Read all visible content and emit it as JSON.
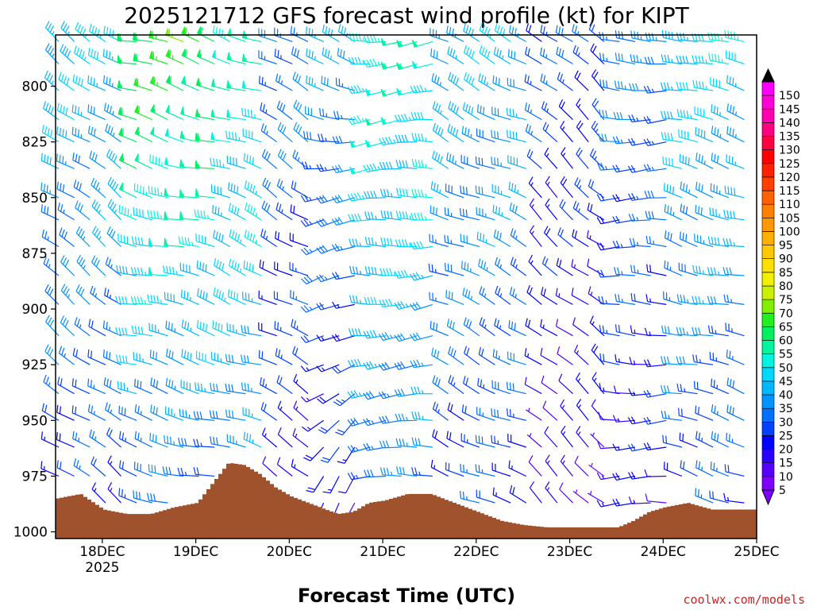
{
  "chart_data": {
    "type": "wind-barb",
    "title": "2025121712 GFS forecast wind profile (kt) for KIPT",
    "xlabel": "Forecast Time (UTC)",
    "credit": "coolwx.com/models",
    "y_axis": {
      "unit": "hPa",
      "min": 777,
      "max": 1003,
      "ticks": [
        {
          "value": 800,
          "label": "800"
        },
        {
          "value": 825,
          "label": "825"
        },
        {
          "value": 850,
          "label": "850"
        },
        {
          "value": 875,
          "label": "875"
        },
        {
          "value": 900,
          "label": "900"
        },
        {
          "value": 925,
          "label": "925"
        },
        {
          "value": 950,
          "label": "950"
        },
        {
          "value": 975,
          "label": "975"
        },
        {
          "value": 1000,
          "label": "1000"
        }
      ]
    },
    "x_axis": {
      "unit": "hours after 2025-12-17 12Z",
      "min": 0,
      "max": 180,
      "ticks": [
        {
          "hour": 12,
          "label": "18DEC",
          "sublabel": "2025"
        },
        {
          "hour": 36,
          "label": "19DEC",
          "sublabel": ""
        },
        {
          "hour": 60,
          "label": "20DEC",
          "sublabel": ""
        },
        {
          "hour": 84,
          "label": "21DEC",
          "sublabel": ""
        },
        {
          "hour": 108,
          "label": "22DEC",
          "sublabel": ""
        },
        {
          "hour": 132,
          "label": "23DEC",
          "sublabel": ""
        },
        {
          "hour": 156,
          "label": "24DEC",
          "sublabel": ""
        },
        {
          "hour": 180,
          "label": "25DEC",
          "sublabel": ""
        }
      ]
    },
    "barb_levels_hpa": [
      780,
      790,
      802,
      815,
      825,
      837,
      850,
      860,
      872,
      885,
      898,
      912,
      925,
      938,
      950,
      962,
      975,
      987
    ],
    "barb_interval_hours": 4,
    "surface_pressure": {
      "hours": [
        0,
        6,
        12,
        18,
        24,
        30,
        36,
        40,
        44,
        48,
        52,
        56,
        60,
        66,
        72,
        76,
        80,
        84,
        90,
        96,
        102,
        108,
        114,
        120,
        126,
        132,
        138,
        144,
        148,
        152,
        156,
        162,
        168,
        174,
        180
      ],
      "hpa": [
        985,
        983,
        990,
        992,
        992,
        989,
        987,
        978,
        969,
        970,
        974,
        980,
        984,
        988,
        992,
        991,
        987,
        986,
        983,
        983,
        987,
        991,
        995,
        997,
        998,
        998,
        998,
        998,
        995,
        991,
        989,
        987,
        990,
        990,
        990
      ]
    },
    "colorbar": {
      "levels": [
        5,
        10,
        15,
        20,
        25,
        30,
        35,
        40,
        45,
        50,
        55,
        60,
        65,
        70,
        75,
        80,
        85,
        90,
        95,
        100,
        105,
        110,
        115,
        120,
        125,
        130,
        135,
        140,
        145,
        150
      ],
      "colors": [
        "#7f00ff",
        "#5500ff",
        "#2a00ff",
        "#0000ff",
        "#0040ff",
        "#0070ff",
        "#0095ff",
        "#00b8ff",
        "#00d8ff",
        "#00f5e0",
        "#00f5a0",
        "#00f060",
        "#20f020",
        "#80f000",
        "#c8f000",
        "#f0f000",
        "#ffe000",
        "#ffc800",
        "#ffb000",
        "#ff9800",
        "#ff8000",
        "#ff6000",
        "#ff4000",
        "#ff2000",
        "#ff0000",
        "#ff0040",
        "#ff0080",
        "#ff00b0",
        "#ff00d8",
        "#ff00ff"
      ],
      "top_arrow_color": "#000000",
      "bottom_arrow_color": "#7f00ff"
    },
    "terrain_color": "#a0522d"
  }
}
